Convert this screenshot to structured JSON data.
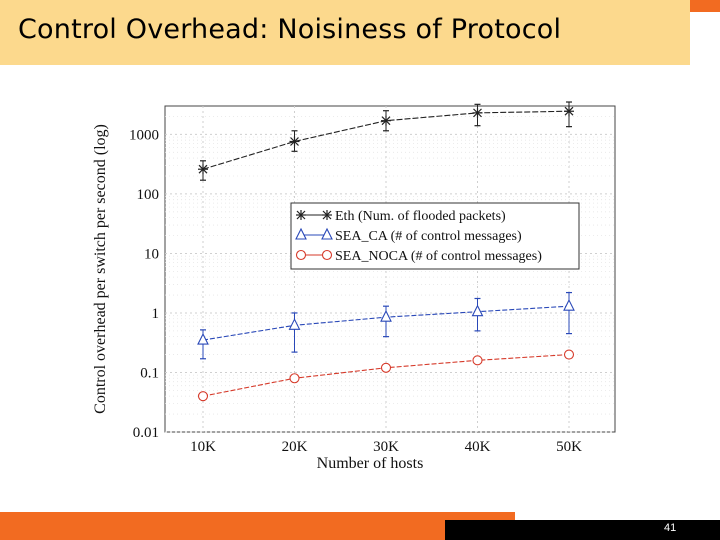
{
  "slide": {
    "title": "Control Overhead: Noisiness of Protocol",
    "page_number": "41",
    "colors": {
      "title_bg": "#fcd98d",
      "accent": "#f26b21",
      "footer_dark": "#000000"
    }
  },
  "chart_data": {
    "type": "line",
    "title": "",
    "xlabel": "Number of hosts",
    "ylabel": "Control overhead per switch per second (log)",
    "categories": [
      "10K",
      "20K",
      "30K",
      "40K",
      "50K"
    ],
    "y_scale": "log",
    "ylim": [
      0.01,
      3000
    ],
    "y_ticks": [
      0.01,
      0.1,
      1,
      10,
      100,
      1000
    ],
    "y_tick_labels": [
      "0.01",
      "0.1",
      "1",
      "10",
      "100",
      "1000"
    ],
    "grid": true,
    "legend_position": "center-right",
    "series": [
      {
        "name": "Eth (Num. of flooded packets)",
        "color": "#222222",
        "marker": "asterisk",
        "values": [
          260,
          760,
          1700,
          2300,
          2450
        ],
        "err_low": [
          170,
          520,
          1150,
          1400,
          1350
        ],
        "err_high": [
          360,
          1150,
          2500,
          3200,
          3500
        ]
      },
      {
        "name": "SEA_CA (# of control messages)",
        "color": "#2948b8",
        "marker": "triangle",
        "values": [
          0.35,
          0.62,
          0.85,
          1.05,
          1.3
        ],
        "err_low": [
          0.17,
          0.22,
          0.4,
          0.5,
          0.45
        ],
        "err_high": [
          0.52,
          1.0,
          1.3,
          1.75,
          2.2
        ]
      },
      {
        "name": "SEA_NOCA (# of control messages)",
        "color": "#d63a2a",
        "marker": "circle",
        "values": [
          0.04,
          0.08,
          0.12,
          0.16,
          0.2
        ],
        "err_low": null,
        "err_high": null
      }
    ]
  }
}
